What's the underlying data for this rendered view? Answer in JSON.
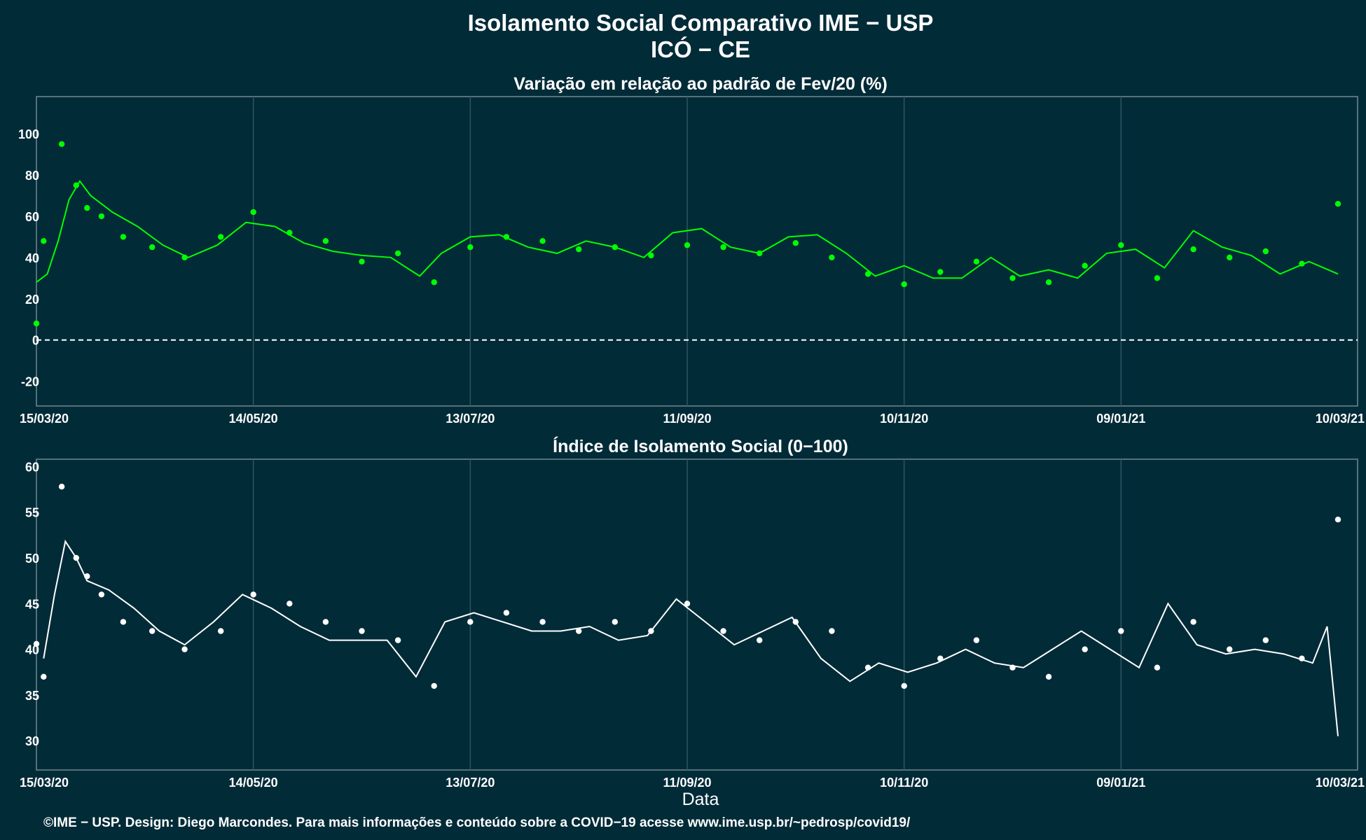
{
  "header": {
    "title_line1": "Isolamento Social Comparativo IME − USP",
    "title_line2": "ICÓ − CE"
  },
  "xlabel": "Data",
  "caption": "©IME − USP. Design: Diego Marcondes. Para mais informações e conteúdo sobre a COVID−19 acesse www.ime.usp.br/~pedrosp/covid19/",
  "colors": {
    "background": "#022b38",
    "grid": "#2f5560",
    "variation_points": "#00ff00",
    "negative_points": "#ff0000",
    "index_points": "#ffffff",
    "zero_line": "#ffffff"
  },
  "chart_data": [
    {
      "type": "scatter",
      "title": "Variação em relação ao padrão de Fev/20 (%)",
      "x_start": "15/03/20",
      "x_end": "10/03/21",
      "x_ticks": [
        "15/03/20",
        "14/05/20",
        "13/07/20",
        "11/09/20",
        "10/11/20",
        "09/01/21",
        "10/03/21"
      ],
      "y_ticks": [
        -20,
        0,
        20,
        40,
        60,
        80,
        100
      ],
      "ylim": [
        -32,
        118
      ],
      "grid": true,
      "reference_line": 0,
      "series": [
        {
          "x": [
            "15/03/20",
            "17/03/20",
            "22/03/20",
            "26/03/20",
            "29/03/20",
            "02/04/20",
            "08/04/20",
            "16/04/20",
            "25/04/20",
            "05/05/20",
            "14/05/20",
            "24/05/20",
            "03/06/20",
            "13/06/20",
            "23/06/20",
            "03/07/20",
            "13/07/20",
            "23/07/20",
            "02/08/20",
            "12/08/20",
            "22/08/20",
            "01/09/20",
            "11/09/20",
            "21/09/20",
            "01/10/20",
            "11/10/20",
            "21/10/20",
            "31/10/20",
            "10/11/20",
            "20/11/20",
            "30/11/20",
            "10/12/20",
            "20/12/20",
            "30/12/20",
            "09/01/21",
            "19/01/21",
            "29/01/21",
            "08/02/21",
            "18/02/21",
            "28/02/21",
            "10/03/21"
          ],
          "values": [
            8,
            48,
            95,
            75,
            64,
            60,
            50,
            45,
            40,
            50,
            62,
            52,
            48,
            38,
            42,
            28,
            45,
            50,
            48,
            44,
            45,
            41,
            46,
            45,
            42,
            47,
            40,
            32,
            27,
            33,
            38,
            30,
            28,
            36,
            46,
            30,
            44,
            40,
            43,
            37,
            66
          ]
        }
      ],
      "moving_average": {
        "x": [
          "15/03/20",
          "18/03/20",
          "21/03/20",
          "24/03/20",
          "27/03/20",
          "30/03/20",
          "05/04/20",
          "12/04/20",
          "19/04/20",
          "26/04/20",
          "04/05/20",
          "12/05/20",
          "20/05/20",
          "28/05/20",
          "05/06/20",
          "13/06/20",
          "21/06/20",
          "29/06/20",
          "05/07/20",
          "13/07/20",
          "21/07/20",
          "29/07/20",
          "06/08/20",
          "14/08/20",
          "22/08/20",
          "30/08/20",
          "07/09/20",
          "15/09/20",
          "23/09/20",
          "01/10/20",
          "09/10/20",
          "17/10/20",
          "25/10/20",
          "02/11/20",
          "10/11/20",
          "18/11/20",
          "26/11/20",
          "04/12/20",
          "12/12/20",
          "20/12/20",
          "28/12/20",
          "05/01/21",
          "13/01/21",
          "21/01/21",
          "29/01/21",
          "06/02/21",
          "14/02/21",
          "22/02/21",
          "02/03/21",
          "10/03/21"
        ],
        "values": [
          28,
          32,
          48,
          68,
          77,
          70,
          62,
          55,
          46,
          40,
          46,
          57,
          55,
          47,
          43,
          41,
          40,
          31,
          42,
          50,
          51,
          45,
          42,
          48,
          45,
          40,
          52,
          54,
          45,
          42,
          50,
          51,
          42,
          31,
          36,
          30,
          30,
          40,
          31,
          34,
          30,
          42,
          44,
          35,
          53,
          45,
          41,
          32,
          38,
          32
        ]
      }
    },
    {
      "type": "scatter",
      "title": "Índice de Isolamento Social (0−100)",
      "x_start": "15/03/20",
      "x_end": "10/03/21",
      "x_ticks": [
        "15/03/20",
        "14/05/20",
        "13/07/20",
        "11/09/20",
        "10/11/20",
        "09/01/21",
        "10/03/21"
      ],
      "y_ticks": [
        30,
        35,
        40,
        45,
        50,
        55,
        60
      ],
      "ylim": [
        26.8,
        60.8
      ],
      "grid": true,
      "series": [
        {
          "x": [
            "15/03/20",
            "17/03/20",
            "22/03/20",
            "26/03/20",
            "29/03/20",
            "02/04/20",
            "08/04/20",
            "16/04/20",
            "25/04/20",
            "05/05/20",
            "14/05/20",
            "24/05/20",
            "03/06/20",
            "13/06/20",
            "23/06/20",
            "03/07/20",
            "13/07/20",
            "23/07/20",
            "02/08/20",
            "12/08/20",
            "22/08/20",
            "01/09/20",
            "11/09/20",
            "21/09/20",
            "01/10/20",
            "11/10/20",
            "21/10/20",
            "31/10/20",
            "10/11/20",
            "20/11/20",
            "30/11/20",
            "10/12/20",
            "20/12/20",
            "30/12/20",
            "09/01/21",
            "19/01/21",
            "29/01/21",
            "08/02/21",
            "18/02/21",
            "28/02/21",
            "10/03/21"
          ],
          "values": [
            40.6,
            37,
            57.8,
            50,
            48,
            46,
            43,
            42,
            40,
            42,
            46,
            45,
            43,
            42,
            41,
            36,
            43,
            44,
            43,
            42,
            43,
            42,
            45,
            42,
            41,
            43,
            42,
            38,
            36,
            39,
            41,
            38,
            37,
            40,
            42,
            38,
            43,
            40,
            41,
            39,
            54.2
          ]
        }
      ],
      "moving_average": {
        "x": [
          "17/03/20",
          "20/03/20",
          "23/03/20",
          "26/03/20",
          "29/03/20",
          "04/04/20",
          "11/04/20",
          "18/04/20",
          "25/04/20",
          "03/05/20",
          "11/05/20",
          "19/05/20",
          "27/05/20",
          "04/06/20",
          "12/06/20",
          "20/06/20",
          "28/06/20",
          "06/07/20",
          "14/07/20",
          "22/07/20",
          "30/07/20",
          "07/08/20",
          "15/08/20",
          "23/08/20",
          "31/08/20",
          "08/09/20",
          "16/09/20",
          "24/09/20",
          "02/10/20",
          "10/10/20",
          "18/10/20",
          "26/10/20",
          "03/11/20",
          "11/11/20",
          "19/11/20",
          "27/11/20",
          "05/12/20",
          "13/12/20",
          "21/12/20",
          "29/12/20",
          "06/01/21",
          "14/01/21",
          "22/01/21",
          "30/01/21",
          "07/02/21",
          "15/02/21",
          "23/02/21",
          "03/03/21",
          "07/03/21",
          "10/03/21"
        ],
        "values": [
          39,
          46,
          51.8,
          50,
          47.5,
          46.5,
          44.5,
          42,
          40.5,
          43,
          46,
          44.5,
          42.5,
          41,
          41,
          41,
          37,
          43,
          44,
          43,
          42,
          42,
          42.5,
          41,
          41.5,
          45.5,
          43,
          40.5,
          42,
          43.5,
          39,
          36.5,
          38.5,
          37.5,
          38.5,
          40,
          38.5,
          38,
          40,
          42,
          40,
          38,
          45,
          40.5,
          39.5,
          40,
          39.5,
          38.5,
          42.5,
          30.5
        ]
      }
    }
  ]
}
